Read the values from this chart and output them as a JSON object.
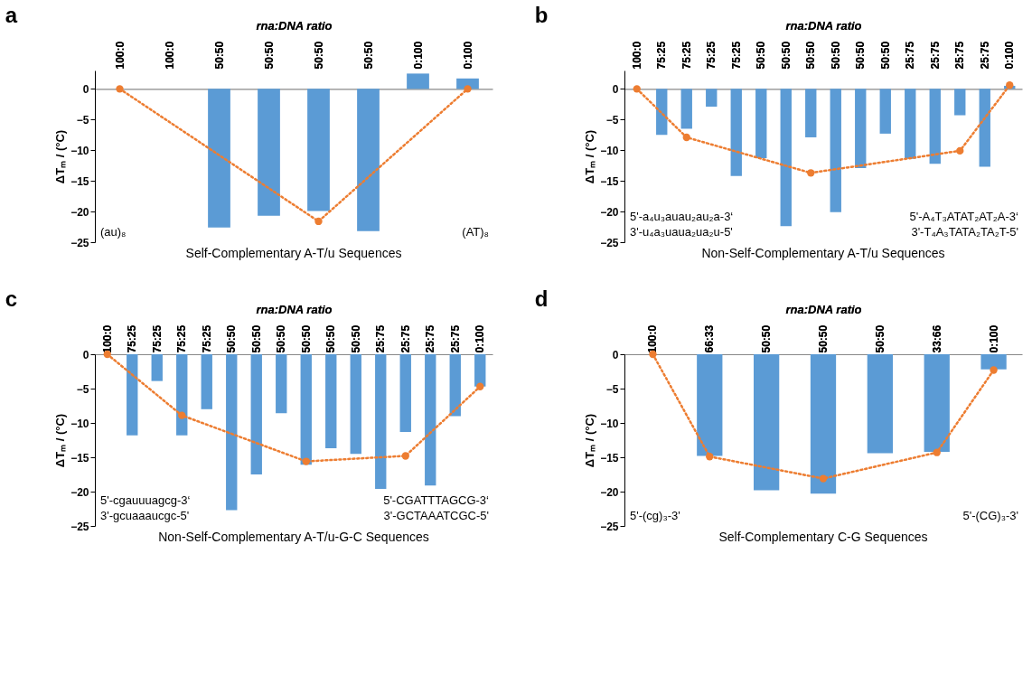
{
  "chart_data": [
    {
      "type": "bar",
      "title": "a",
      "xlabel": "rna:DNA ratio",
      "ylabel": "ΔTₘ / (°C)",
      "categories": [
        "100:0",
        "100:0",
        "50:50",
        "50:50",
        "50:50",
        "50:50",
        "0:100",
        "0:100"
      ],
      "series": [
        {
          "color": "#5b9bd5",
          "values": [
            null,
            null,
            -22.6,
            -20.7,
            -19.9,
            -23.2,
            2.5,
            1.7
          ]
        },
        {
          "type": "line",
          "color": "#ed7d31",
          "values": [
            0,
            null,
            null,
            null,
            -21.6,
            null,
            null,
            0
          ]
        }
      ],
      "ylim": [
        -25,
        3
      ],
      "yticks": [
        0,
        -5,
        -10,
        -15,
        -20,
        -25
      ],
      "grid": false,
      "legend": false,
      "marker": "circle",
      "line_style": "dotted",
      "annotations": [
        "Self-Complementary A-T/u Sequences",
        "(au)₈",
        "(AT)₈"
      ]
    },
    {
      "type": "bar",
      "title": "b",
      "xlabel": "rna:DNA ratio",
      "ylabel": "ΔTₘ / (°C)",
      "categories": [
        "100:0",
        "75:25",
        "75:25",
        "75:25",
        "75:25",
        "50:50",
        "50:50",
        "50:50",
        "50:50",
        "50:50",
        "50:50",
        "25:75",
        "25:75",
        "25:75",
        "25:75",
        "0:100"
      ],
      "series": [
        {
          "color": "#5b9bd5",
          "values": [
            null,
            -7.5,
            -6.5,
            -2.9,
            -14.2,
            -11.3,
            -22.4,
            -7.9,
            -20.1,
            -12.9,
            -7.3,
            -11.4,
            -12.2,
            -4.3,
            -12.7,
            0.5
          ]
        },
        {
          "type": "line",
          "color": "#ed7d31",
          "values": [
            0,
            null,
            -7.9,
            null,
            null,
            null,
            null,
            -13.7,
            null,
            null,
            null,
            null,
            null,
            -10.1,
            null,
            0.6
          ]
        }
      ],
      "ylim": [
        -25,
        3
      ],
      "yticks": [
        0,
        -5,
        -10,
        -15,
        -20,
        -25
      ],
      "grid": false,
      "legend": false,
      "marker": "circle",
      "line_style": "dotted",
      "annotations": [
        "Non-Self-Complementary A-T/u Sequences",
        "5'-a₄u₃auau₂au₂a-3‘",
        "3'-u₄a₃uaua₂ua₂u-5'",
        "5'-A₄T₃ATAT₂AT₂A-3‘",
        "3'-T₄A₃TATA₂TA₂T-5'"
      ]
    },
    {
      "type": "bar",
      "title": "c",
      "xlabel": "rna:DNA ratio",
      "ylabel": "ΔTₘ / (°C)",
      "categories": [
        "100:0",
        "75:25",
        "75:25",
        "75:25",
        "75:25",
        "50:50",
        "50:50",
        "50:50",
        "50:50",
        "50:50",
        "50:50",
        "25:75",
        "25:75",
        "25:75",
        "25:75",
        "0:100"
      ],
      "series": [
        {
          "color": "#5b9bd5",
          "values": [
            null,
            -11.8,
            -3.9,
            -11.8,
            -8.0,
            -22.7,
            -17.5,
            -8.6,
            -16.1,
            -13.7,
            -14.5,
            -19.6,
            -11.3,
            -19.1,
            -9.0,
            -4.7
          ]
        },
        {
          "type": "line",
          "color": "#ed7d31",
          "values": [
            0,
            null,
            null,
            -8.9,
            null,
            null,
            null,
            null,
            -15.6,
            null,
            null,
            null,
            -14.8,
            null,
            null,
            -4.7
          ]
        }
      ],
      "ylim": [
        -25,
        0
      ],
      "yticks": [
        0,
        -5,
        -10,
        -15,
        -20,
        -25
      ],
      "grid": false,
      "legend": false,
      "marker": "circle",
      "line_style": "dotted",
      "annotations": [
        "Non-Self-Complementary A-T/u-G-C Sequences",
        "5'-cgauuuagcg-3‘",
        "3'-gcuaaaucgc-5'",
        "5'-CGATTTAGCG-3‘",
        "3'-GCTAAATCGC-5'"
      ]
    },
    {
      "type": "bar",
      "title": "d",
      "xlabel": "rna:DNA ratio",
      "ylabel": "ΔTₘ / (°C)",
      "categories": [
        "100:0",
        "66:33",
        "50:50",
        "50:50",
        "50:50",
        "33:66",
        "0:100"
      ],
      "series": [
        {
          "color": "#5b9bd5",
          "values": [
            null,
            -14.8,
            -19.8,
            -20.3,
            -14.4,
            -14.2,
            -2.2
          ]
        },
        {
          "type": "line",
          "color": "#ed7d31",
          "values": [
            0,
            -14.9,
            null,
            -18.1,
            null,
            -14.3,
            -2.3
          ]
        }
      ],
      "ylim": [
        -25,
        0
      ],
      "yticks": [
        0,
        -5,
        -10,
        -15,
        -20,
        -25
      ],
      "grid": false,
      "legend": false,
      "marker": "circle",
      "line_style": "dotted",
      "annotations": [
        "Self-Complementary C-G Sequences",
        "5'-(cg)₃-3'",
        "5'-(CG)₃-3'"
      ]
    }
  ]
}
